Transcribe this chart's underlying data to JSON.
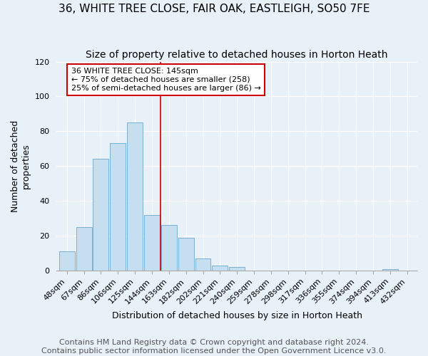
{
  "title": "36, WHITE TREE CLOSE, FAIR OAK, EASTLEIGH, SO50 7FE",
  "subtitle": "Size of property relative to detached houses in Horton Heath",
  "xlabel": "Distribution of detached houses by size in Horton Heath",
  "ylabel": "Number of detached\nproperties",
  "bar_labels": [
    "48sqm",
    "67sqm",
    "86sqm",
    "106sqm",
    "125sqm",
    "144sqm",
    "163sqm",
    "182sqm",
    "202sqm",
    "221sqm",
    "240sqm",
    "259sqm",
    "278sqm",
    "298sqm",
    "317sqm",
    "336sqm",
    "355sqm",
    "374sqm",
    "394sqm",
    "413sqm",
    "432sqm"
  ],
  "bar_values": [
    11,
    25,
    64,
    73,
    85,
    32,
    26,
    19,
    7,
    3,
    2,
    0,
    0,
    0,
    0,
    0,
    0,
    0,
    0,
    1,
    0
  ],
  "bar_color": "#c5dff0",
  "bar_edge_color": "#7ab0d4",
  "vline_x_index": 5,
  "vline_color": "#cc0000",
  "annotation_line1": "36 WHITE TREE CLOSE: 145sqm",
  "annotation_line2": "← 75% of detached houses are smaller (258)",
  "annotation_line3": "25% of semi-detached houses are larger (86) →",
  "annotation_box_color": "white",
  "annotation_box_edge": "#cc0000",
  "ylim": [
    0,
    120
  ],
  "yticks": [
    0,
    20,
    40,
    60,
    80,
    100,
    120
  ],
  "footer1": "Contains HM Land Registry data © Crown copyright and database right 2024.",
  "footer2": "Contains public sector information licensed under the Open Government Licence v3.0.",
  "background_color": "#e8f0f8",
  "title_fontsize": 11,
  "subtitle_fontsize": 10,
  "axis_label_fontsize": 9,
  "tick_fontsize": 8,
  "footer_fontsize": 8
}
